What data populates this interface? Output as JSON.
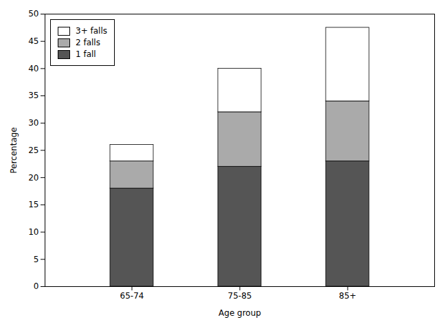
{
  "chart_data": {
    "type": "bar",
    "stacked": true,
    "categories": [
      "65-74",
      "75-85",
      "85+"
    ],
    "series": [
      {
        "name": "1 fall",
        "color": "#555555",
        "values": [
          18,
          22,
          23
        ]
      },
      {
        "name": "2 falls",
        "color": "#aaaaaa",
        "values": [
          5,
          10,
          11
        ]
      },
      {
        "name": "3+ falls",
        "color": "#ffffff",
        "values": [
          3,
          8,
          13.5
        ]
      }
    ],
    "xlabel": "Age group",
    "ylabel": "Percentage",
    "ylim": [
      0,
      50
    ],
    "yticks": [
      0,
      5,
      10,
      15,
      20,
      25,
      30,
      35,
      40,
      45,
      50
    ],
    "grid": false,
    "legend": "upper left"
  }
}
